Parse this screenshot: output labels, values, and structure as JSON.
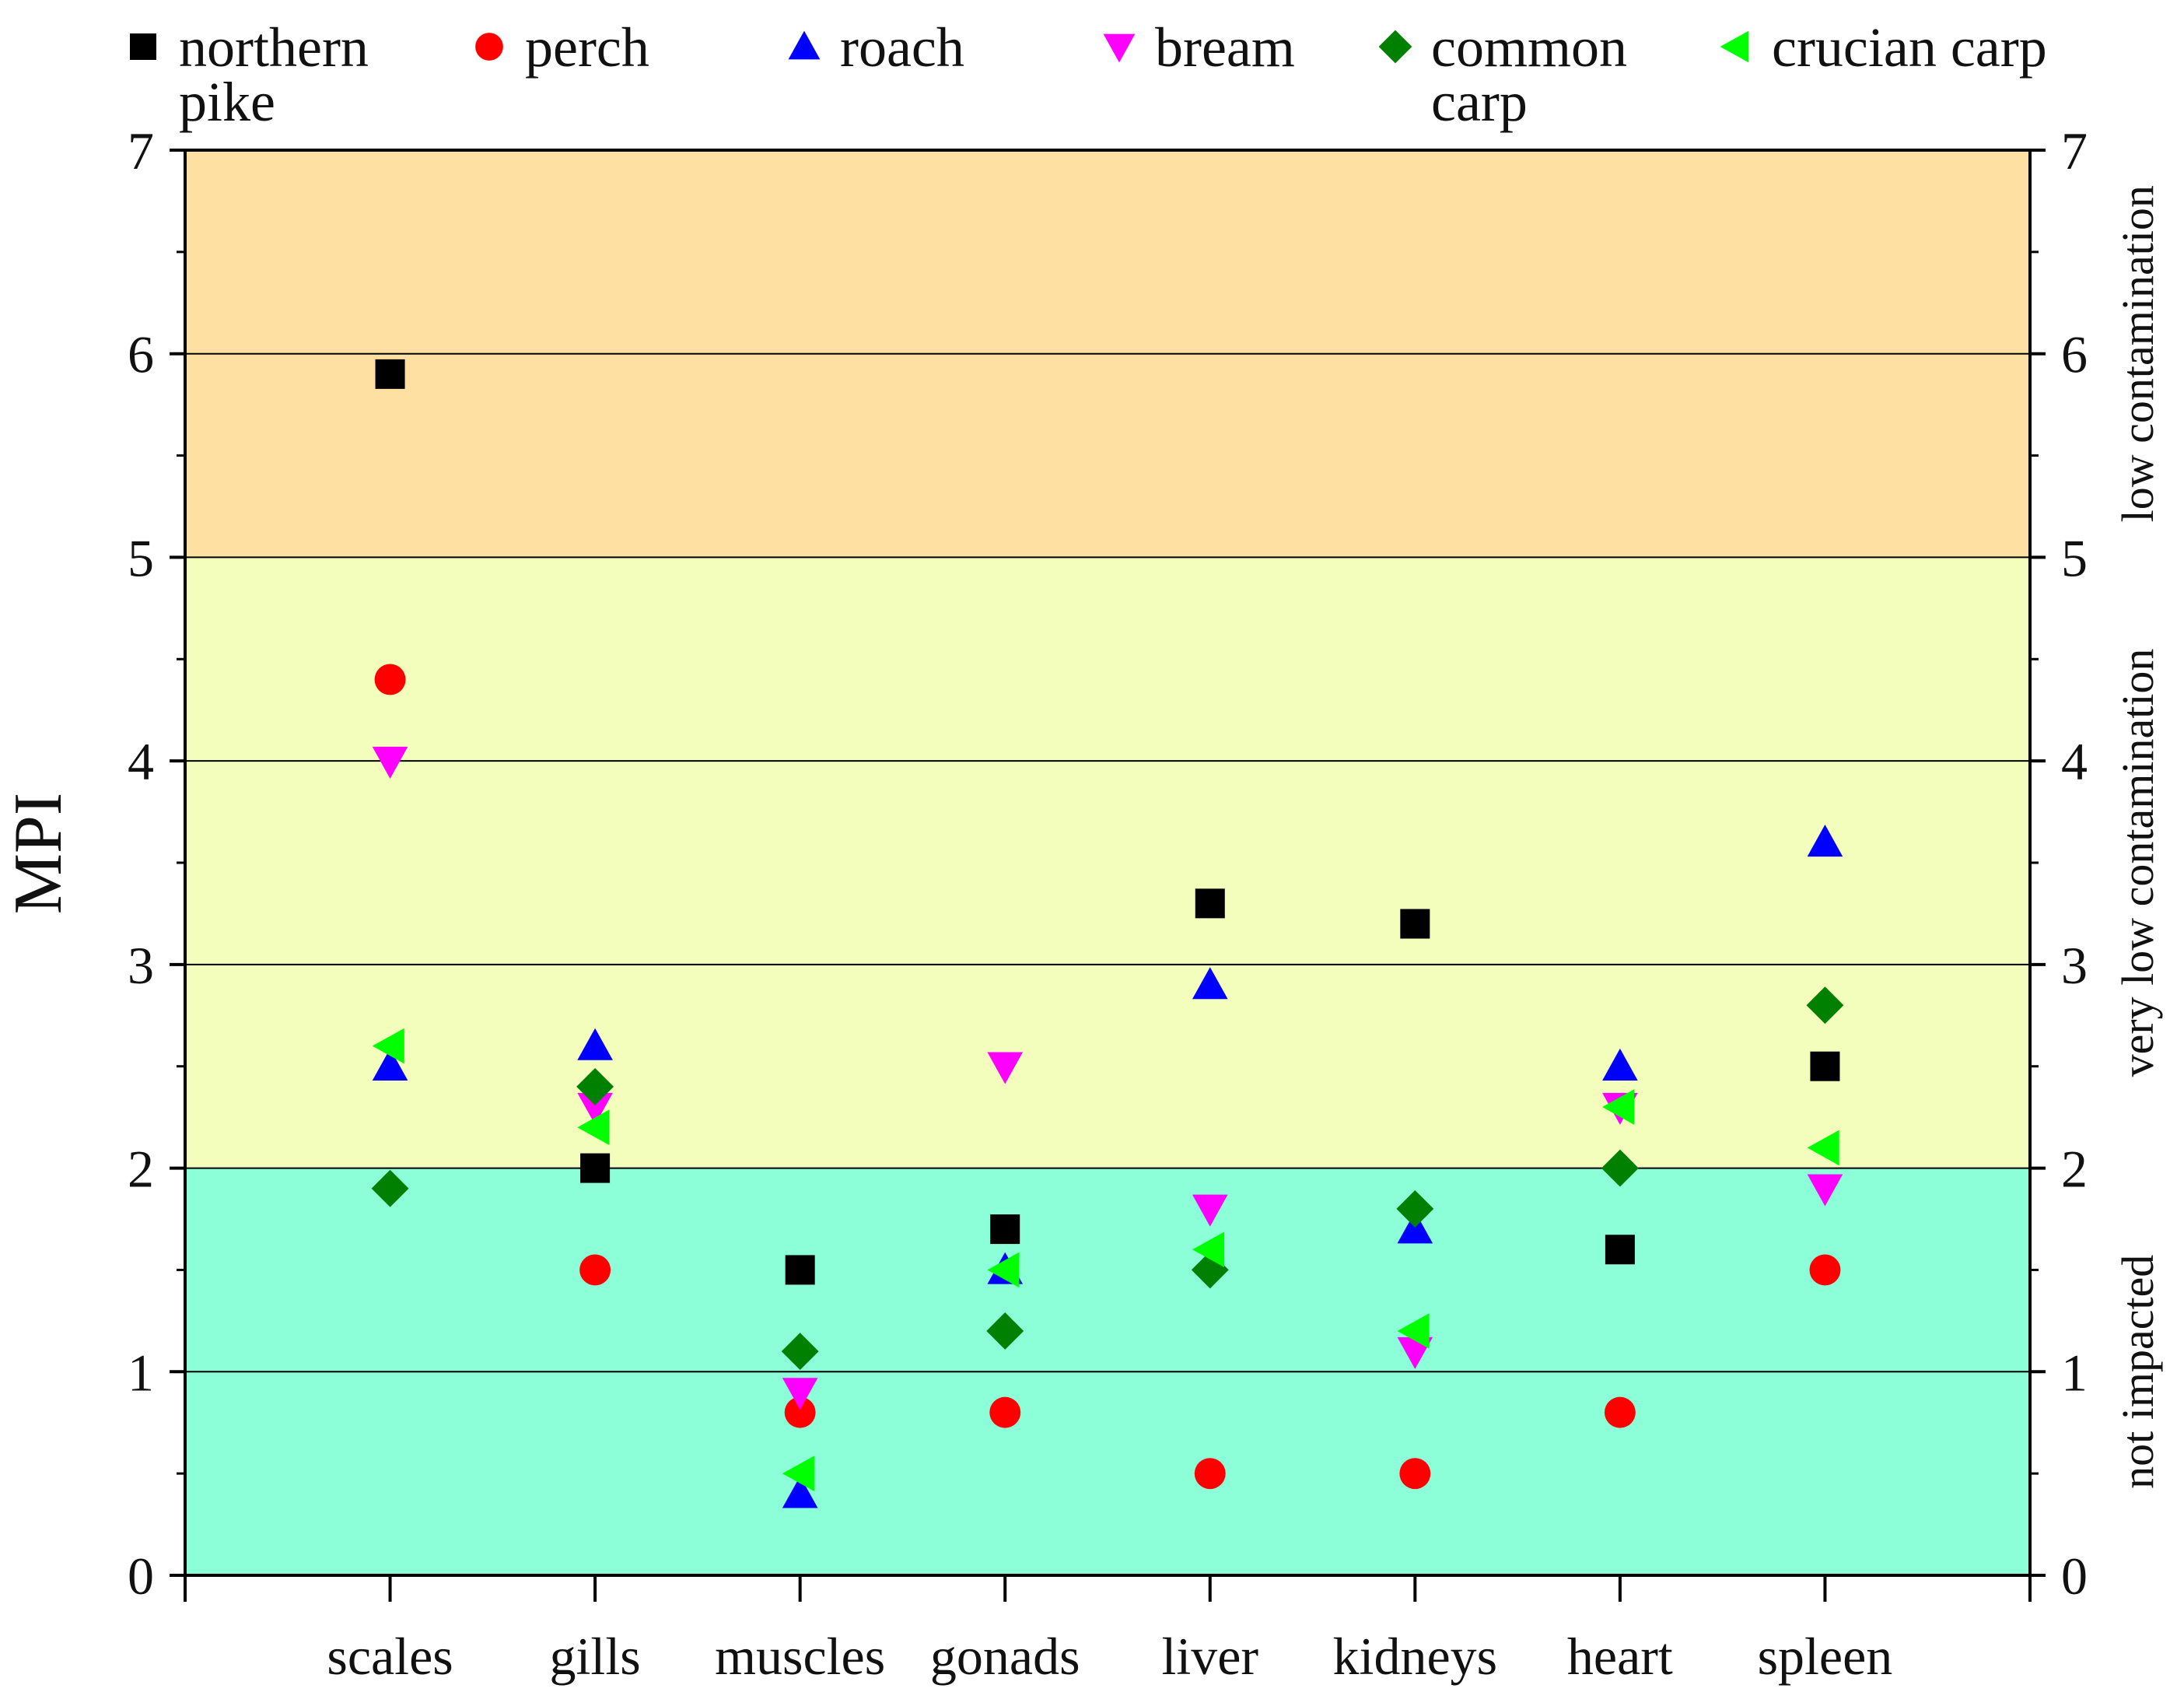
{
  "chart_data": {
    "type": "scatter",
    "title": "",
    "xlabel": "",
    "ylabel": "MPI",
    "ylim": [
      0,
      7
    ],
    "yticks": [
      0,
      1,
      2,
      3,
      4,
      5,
      6,
      7
    ],
    "gridlines_y": [
      1,
      2,
      3,
      4,
      5,
      6
    ],
    "legend_position": "top",
    "categories": [
      "scales",
      "gills",
      "muscles",
      "gonads",
      "liver",
      "kidneys",
      "heart",
      "spleen"
    ],
    "series": [
      {
        "name": "northern pike",
        "name_lines": [
          "northern",
          "pike"
        ],
        "marker": "square",
        "color": "#000000",
        "values": [
          5.9,
          2.0,
          1.5,
          1.7,
          3.3,
          3.2,
          1.6,
          2.5
        ]
      },
      {
        "name": "perch",
        "name_lines": [
          "perch"
        ],
        "marker": "circle",
        "color": "#ff0000",
        "values": [
          4.4,
          1.5,
          0.8,
          0.8,
          0.5,
          0.5,
          0.8,
          1.5
        ]
      },
      {
        "name": "roach",
        "name_lines": [
          "roach"
        ],
        "marker": "triangle-up",
        "color": "#0000ff",
        "values": [
          2.5,
          2.6,
          0.4,
          1.5,
          2.9,
          1.7,
          2.5,
          3.6
        ]
      },
      {
        "name": "bream",
        "name_lines": [
          "bream"
        ],
        "marker": "triangle-down",
        "color": "#ff00ff",
        "values": [
          4.0,
          2.3,
          0.9,
          2.5,
          1.8,
          1.1,
          2.3,
          1.9
        ]
      },
      {
        "name": "common carp",
        "name_lines": [
          "common",
          "carp"
        ],
        "marker": "diamond",
        "color": "#008000",
        "values": [
          1.9,
          2.4,
          1.1,
          1.2,
          1.5,
          1.8,
          2.0,
          2.8
        ]
      },
      {
        "name": "crucian carp",
        "name_lines": [
          "crucian carp"
        ],
        "marker": "triangle-left",
        "color": "#00ff00",
        "values": [
          2.6,
          2.2,
          0.5,
          1.5,
          1.6,
          1.2,
          2.3,
          2.1
        ]
      }
    ],
    "zones": [
      {
        "label": "not impacted",
        "from": 0,
        "to": 2,
        "color": "#8cffd8"
      },
      {
        "label": "very low contamination",
        "from": 2,
        "to": 5,
        "color": "#f3fdbc"
      },
      {
        "label": "low contamination",
        "from": 5,
        "to": 7,
        "color": "#fde0a2"
      }
    ]
  }
}
